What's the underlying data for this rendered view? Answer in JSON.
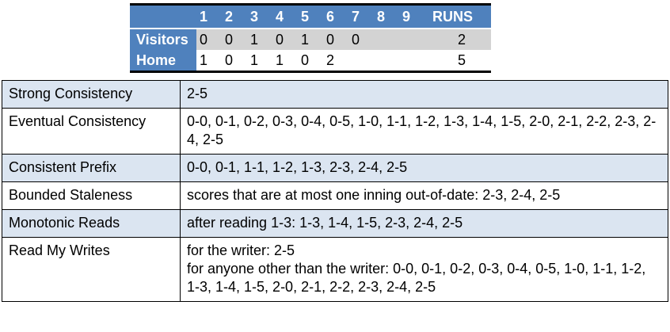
{
  "scoreboard": {
    "header": {
      "team": "",
      "innings": [
        "1",
        "2",
        "3",
        "4",
        "5",
        "6",
        "7",
        "8",
        "9"
      ],
      "runs": "RUNS"
    },
    "rows": [
      {
        "team": "Visitors",
        "innings": [
          "0",
          "0",
          "1",
          "0",
          "1",
          "0",
          "0",
          "",
          ""
        ],
        "runs": "2"
      },
      {
        "team": "Home",
        "innings": [
          "1",
          "0",
          "1",
          "1",
          "0",
          "2",
          "",
          "",
          ""
        ],
        "runs": "5"
      }
    ]
  },
  "guarantees": [
    {
      "label": "Strong Consistency",
      "lines": [
        "2-5"
      ]
    },
    {
      "label": "Eventual Consistency",
      "lines": [
        "0-0, 0-1, 0-2, 0-3, 0-4, 0-5, 1-0, 1-1, 1-2, 1-3, 1-4, 1-5, 2-0, 2-1, 2-2, 2-3, 2-4, 2-5"
      ]
    },
    {
      "label": "Consistent Prefix",
      "lines": [
        "0-0, 0-1, 1-1, 1-2, 1-3, 2-3, 2-4, 2-5"
      ]
    },
    {
      "label": "Bounded Staleness",
      "lines": [
        "scores that are at most one inning out-of-date:  2-3, 2-4, 2-5"
      ]
    },
    {
      "label": "Monotonic Reads",
      "lines": [
        "after reading 1-3:  1-3, 1-4, 1-5, 2-3, 2-4, 2-5"
      ]
    },
    {
      "label": "Read My Writes",
      "lines": [
        "for the writer:  2-5",
        "for anyone other than the writer:  0-0, 0-1, 0-2, 0-3, 0-4, 0-5, 1-0, 1-1, 1-2, 1-3, 1-4, 1-5, 2-0, 2-1, 2-2, 2-3, 2-4, 2-5"
      ]
    }
  ],
  "colors": {
    "header_blue": "#4f81bd",
    "row_gray": "#d3d3d3",
    "row_shade": "#dbe5f1"
  }
}
